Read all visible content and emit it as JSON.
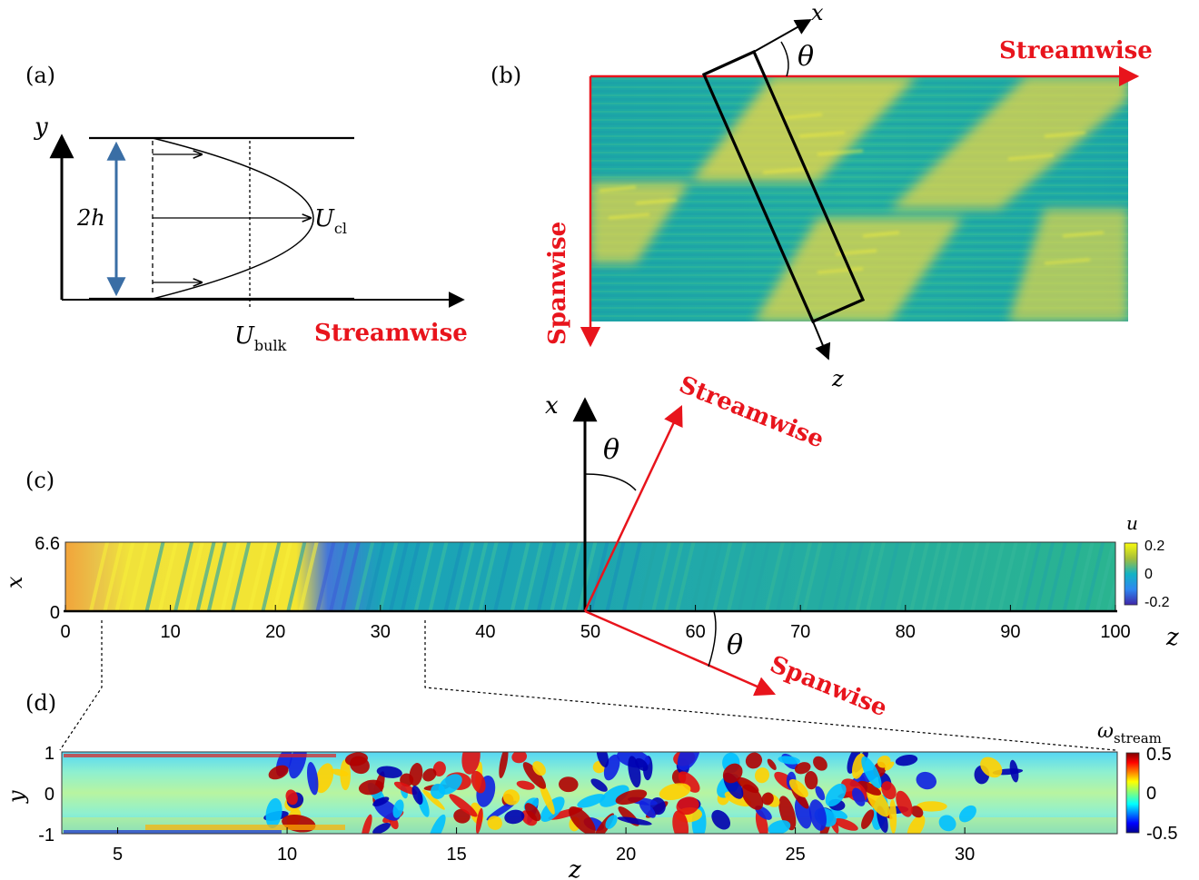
{
  "panels": {
    "a": {
      "label": "(a)",
      "y_axis": "y",
      "height_label": "2h",
      "ucl_main": "U",
      "ucl_sub": "cl",
      "ubulk_main": "U",
      "ubulk_sub": "bulk",
      "streamwise": "Streamwise"
    },
    "b": {
      "label": "(b)",
      "x_axis": "x",
      "z_axis": "z",
      "angle": "θ",
      "streamwise": "Streamwise",
      "spanwise": "Spanwise"
    },
    "c": {
      "label": "(c)",
      "x_axis": "x",
      "z_axis": "z",
      "angle_top": "θ",
      "angle_bottom": "θ",
      "streamwise": "Streamwise",
      "spanwise": "Spanwise",
      "x_ticks": [
        "0",
        "6.6"
      ],
      "z_ticks": [
        "0",
        "10",
        "20",
        "30",
        "40",
        "50",
        "60",
        "70",
        "80",
        "90",
        "100"
      ],
      "colorbar_title": "u",
      "colorbar_ticks": [
        "0.2",
        "0",
        "-0.2"
      ]
    },
    "d": {
      "label": "(d)",
      "y_axis": "y",
      "z_axis": "z",
      "y_ticks": [
        "1",
        "0",
        "-1"
      ],
      "z_ticks": [
        "5",
        "10",
        "15",
        "20",
        "25",
        "30"
      ],
      "colorbar_title_main": "ω",
      "colorbar_title_sub": "stream",
      "colorbar_ticks": [
        "0.5",
        "0",
        "-0.5"
      ]
    }
  },
  "colors": {
    "red": "#e8141c",
    "blue_arrow": "#3a6ea5",
    "parula_low": "#3e26a8",
    "parula_mid": "#20b2aa",
    "parula_high": "#f9fb0e",
    "jet_low": "#00008f",
    "jet_mid": "#00ffff",
    "jet_high": "#800000"
  }
}
